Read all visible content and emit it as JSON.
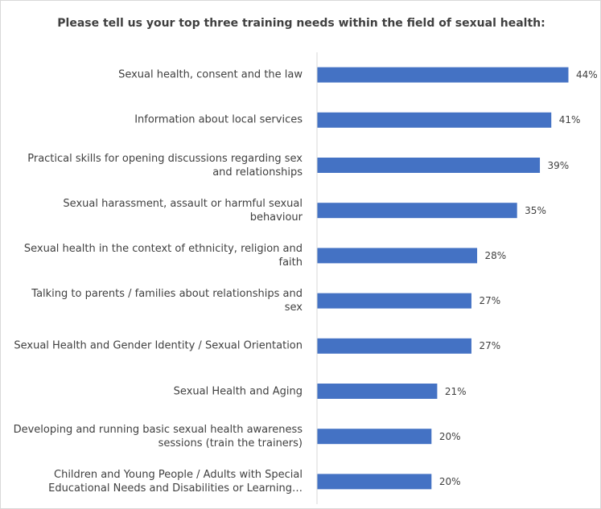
{
  "chart_data": {
    "type": "bar",
    "orientation": "horizontal",
    "title": "Please tell us your top three training needs within the field of sexual health:",
    "xlabel": "",
    "ylabel": "",
    "categories": [
      "Sexual health, consent and the law",
      "Information about local services",
      "Practical skills for opening discussions regarding sex and relationships",
      "Sexual harassment, assault or harmful sexual behaviour",
      "Sexual health in the context of ethnicity, religion and faith",
      "Talking to parents / families about relationships and sex",
      "Sexual Health and Gender Identity / Sexual Orientation",
      "Sexual Health and Aging",
      "Developing and running basic sexual health awareness sessions (train the trainers)",
      "Children and Young People / Adults with Special Educational Needs and Disabilities or Learning…"
    ],
    "values": [
      44,
      41,
      39,
      35,
      28,
      27,
      27,
      21,
      20,
      20
    ],
    "value_labels": [
      "44%",
      "41%",
      "39%",
      "35%",
      "28%",
      "27%",
      "27%",
      "21%",
      "20%",
      "20%"
    ],
    "xlim": [
      0,
      44
    ],
    "bar_color": "#4472C4",
    "axis_color": "#d9d9d9",
    "grid": false,
    "legend": "none"
  }
}
